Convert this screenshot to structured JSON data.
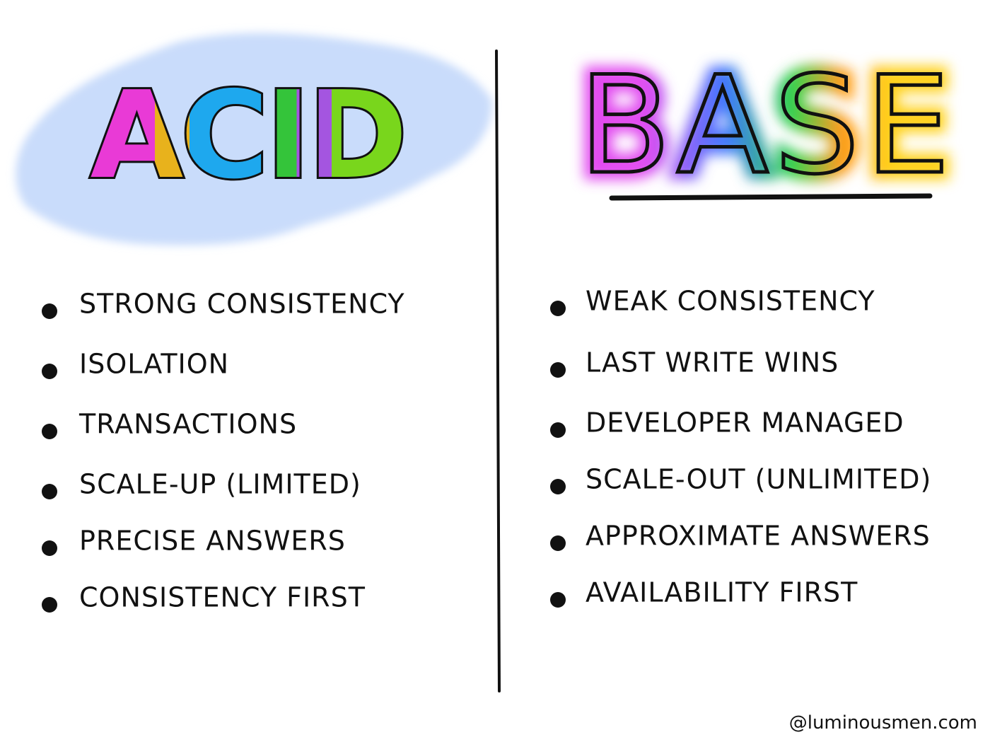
{
  "left": {
    "title": "ACID",
    "items": [
      "STRONG CONSISTENCY",
      "ISOLATION",
      "TRANSACTIONS",
      "SCALE-UP (LIMITED)",
      "PRECISE ANSWERS",
      "CONSISTENCY FIRST"
    ]
  },
  "right": {
    "title": "BASE",
    "items": [
      "WEAK CONSISTENCY",
      "LAST WRITE WINS",
      "DEVELOPER MANAGED",
      "SCALE-OUT (UNLIMITED)",
      "APPROXIMATE ANSWERS",
      "AVAILABILITY FIRST"
    ]
  },
  "footer": "@luminousmen.com"
}
